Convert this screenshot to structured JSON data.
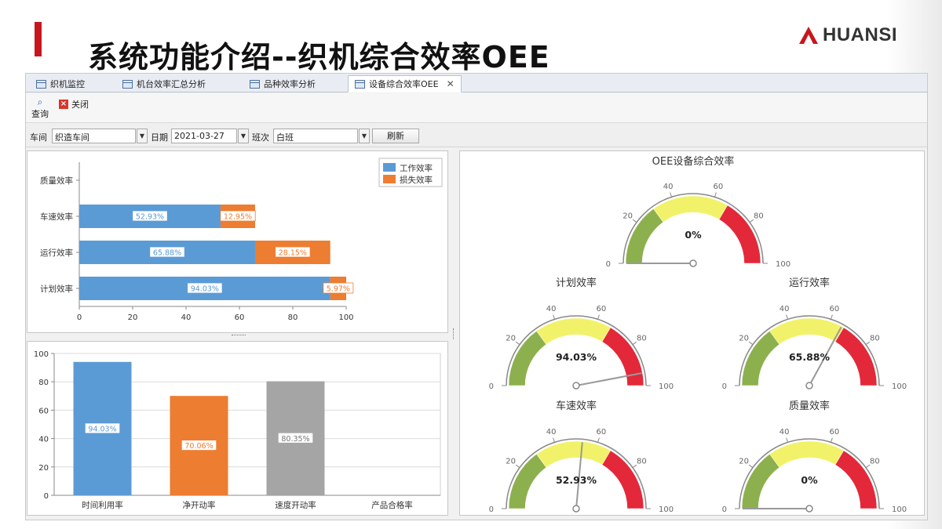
{
  "slide": {
    "title": "系统功能介绍--织机综合效率OEE",
    "logo_text": "HUANSI",
    "accent_color": "#c8161d"
  },
  "tabs": [
    {
      "label": "织机监控",
      "active": false
    },
    {
      "label": "机台效率汇总分析",
      "active": false
    },
    {
      "label": "品种效率分析",
      "active": false
    },
    {
      "label": "设备综合效率OEE",
      "active": true,
      "closable": true
    }
  ],
  "toolbar": {
    "query_label": "查询",
    "query_icon": "magnifier-icon",
    "close_label": "关闭",
    "close_icon": "red-x-icon"
  },
  "filters": {
    "workshop_label": "车间",
    "workshop_value": "织造车间",
    "date_label": "日期",
    "date_value": "2021-03-27",
    "shift_label": "班次",
    "shift_value": "白班",
    "refresh_label": "刷新"
  },
  "chart_data": [
    {
      "type": "bar",
      "orientation": "horizontal",
      "stacked": true,
      "categories": [
        "计划效率",
        "运行效率",
        "车速效率",
        "质量效率"
      ],
      "series": [
        {
          "name": "工作效率",
          "color": "#5b9bd5",
          "values": [
            94.03,
            65.88,
            52.93,
            null
          ],
          "labels": [
            "94.03%",
            "65.88%",
            "52.93%",
            ""
          ]
        },
        {
          "name": "损失效率",
          "color": "#ed7d31",
          "values": [
            5.97,
            28.15,
            12.95,
            null
          ],
          "labels": [
            "5.97%",
            "28.15%",
            "12.95%",
            ""
          ]
        }
      ],
      "xlim": [
        0,
        100
      ],
      "xticks": [
        "0",
        "20",
        "40",
        "60",
        "80",
        "100"
      ],
      "legend": "top-right"
    },
    {
      "type": "bar",
      "categories": [
        "时间利用率",
        "净开动率",
        "速度开动率",
        "产品合格率"
      ],
      "values": [
        94.03,
        70.06,
        80.35,
        null
      ],
      "labels": [
        "94.03%",
        "70.06%",
        "80.35%",
        ""
      ],
      "colors": [
        "#5b9bd5",
        "#ed7d31",
        "#a5a5a5",
        "#a5a5a5"
      ],
      "ylim": [
        0,
        100
      ],
      "yticks": [
        "0",
        "20",
        "40",
        "60",
        "80",
        "100"
      ],
      "grid": true
    }
  ],
  "gauges": {
    "scale_labels": [
      "0",
      "20",
      "40",
      "60",
      "80",
      "100"
    ],
    "zone_colors": [
      "#8db04e",
      "#f2f26a",
      "#e3283a"
    ],
    "items": [
      {
        "title": "OEE设备综合效率",
        "value": 0,
        "display": "0%"
      },
      {
        "title": "计划效率",
        "value": 94.03,
        "display": "94.03%"
      },
      {
        "title": "运行效率",
        "value": 65.88,
        "display": "65.88%"
      },
      {
        "title": "车速效率",
        "value": 52.93,
        "display": "52.93%"
      },
      {
        "title": "质量效率",
        "value": 0,
        "display": "0%"
      }
    ]
  }
}
